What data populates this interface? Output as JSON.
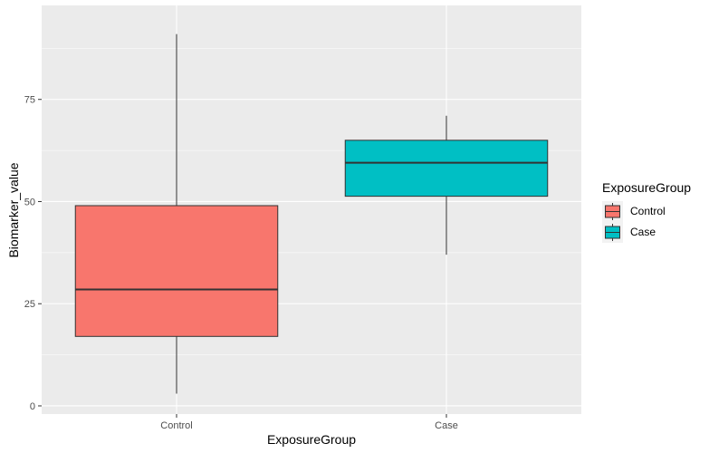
{
  "chart_data": {
    "type": "box",
    "xlabel": "ExposureGroup",
    "ylabel": "Biomarker_value",
    "ylim": [
      -2,
      98
    ],
    "yticks": [
      0,
      25,
      50,
      75
    ],
    "grid": true,
    "legend": {
      "title": "ExposureGroup",
      "placement": "right",
      "entries": [
        "Control",
        "Case"
      ]
    },
    "categories": [
      "Control",
      "Case"
    ],
    "boxes": [
      {
        "category": "Control",
        "min": 3,
        "q1": 17,
        "median": 28.5,
        "q3": 49,
        "max": 91,
        "color": "#F8766D"
      },
      {
        "category": "Case",
        "min": 37,
        "q1": 51.3,
        "median": 59.5,
        "q3": 65,
        "max": 71,
        "color": "#00BFC4"
      }
    ],
    "colors": {
      "panel_background": "#EBEBEB",
      "grid_major": "#FFFFFF",
      "outline": "#333333"
    }
  }
}
